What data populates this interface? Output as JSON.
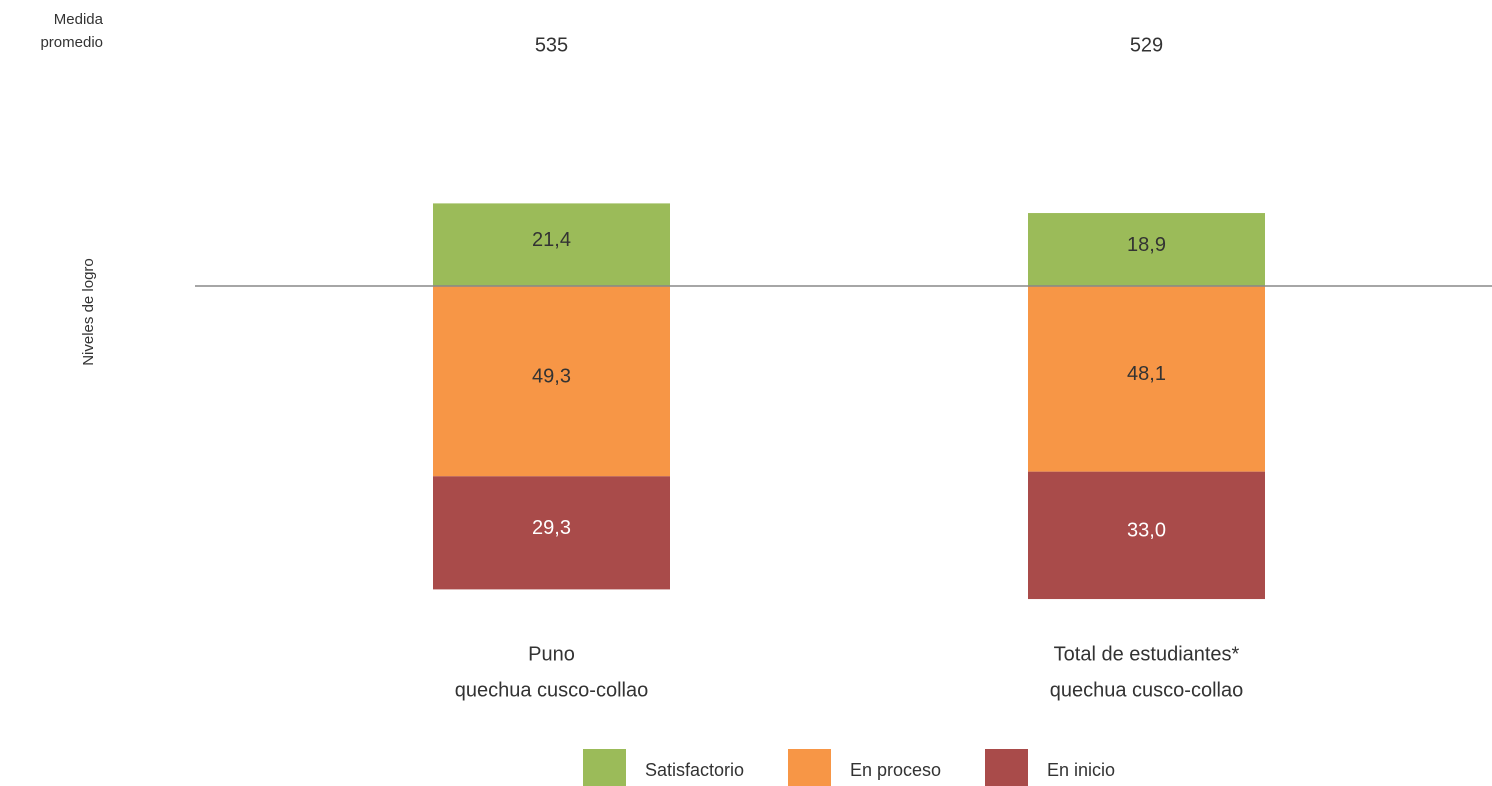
{
  "chart_data": {
    "type": "diverging-bar",
    "y_label": "Niveles de logro",
    "average_label": [
      "Medida",
      "promedio"
    ],
    "averages": [
      535,
      529
    ],
    "categories": [
      [
        "Puno",
        "quechua cusco-collao"
      ],
      [
        "Total de estudiantes*",
        "quechua cusco-collao"
      ]
    ],
    "series": [
      {
        "name": "Satisfactorio",
        "color": "#9bbb59",
        "label_color": "#333333",
        "side": "above",
        "values": [
          21.4,
          18.9
        ],
        "value_labels": [
          "21,4",
          "18,9"
        ]
      },
      {
        "name": "En proceso",
        "color": "#f79646",
        "label_color": "#333333",
        "side": "below",
        "values": [
          49.3,
          48.1
        ],
        "value_labels": [
          "49,3",
          "48,1"
        ]
      },
      {
        "name": "En inicio",
        "color": "#a94b4a",
        "label_color": "#ffffff",
        "side": "below",
        "values": [
          29.3,
          33.0
        ],
        "value_labels": [
          "29,3",
          "33,0"
        ]
      }
    ]
  }
}
